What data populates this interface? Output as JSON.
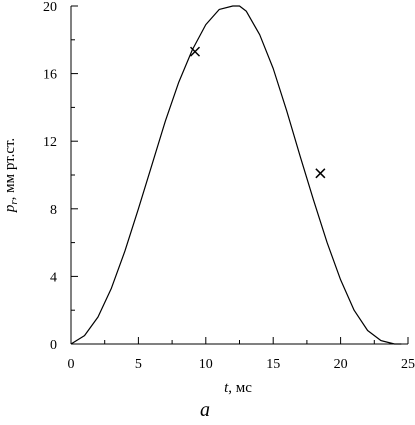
{
  "chart_data": {
    "type": "line",
    "title": "",
    "xlabel": {
      "symbol": "t",
      "unit": ", мс"
    },
    "ylabel": {
      "symbol": "p",
      "subscript": "r",
      "unit": ", мм рт.ст."
    },
    "panel_label": "а",
    "xlim": [
      0,
      25
    ],
    "ylim": [
      0,
      20
    ],
    "x_ticks": [
      0,
      5,
      10,
      15,
      20,
      25
    ],
    "y_ticks": [
      0,
      4,
      8,
      12,
      16,
      20
    ],
    "grid": false,
    "legend": "none",
    "series": [
      {
        "x": [
          0,
          1,
          2,
          3,
          4,
          5,
          6,
          7,
          8,
          9,
          10,
          11,
          12,
          12.5,
          13,
          14,
          15,
          16,
          17,
          18,
          19,
          20,
          21,
          22,
          23,
          24,
          24.5
        ],
        "y": [
          0,
          0.5,
          1.6,
          3.3,
          5.5,
          8.0,
          10.6,
          13.2,
          15.5,
          17.4,
          18.9,
          19.8,
          20.0,
          20.0,
          19.7,
          18.3,
          16.3,
          13.8,
          11.1,
          8.5,
          6.0,
          3.8,
          2.0,
          0.8,
          0.2,
          0,
          0
        ]
      }
    ],
    "markers": [
      {
        "x": 9.2,
        "y": 17.3
      },
      {
        "x": 18.5,
        "y": 10.1
      }
    ]
  },
  "colors": {
    "line": "#000000",
    "axis": "#000000",
    "background": "#ffffff"
  }
}
